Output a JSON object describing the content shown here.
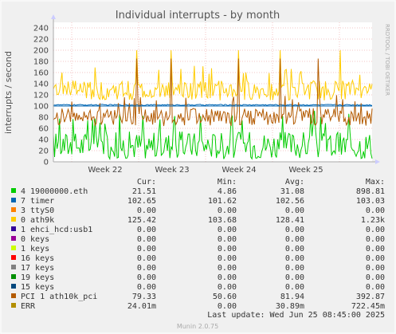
{
  "chart_data": {
    "type": "line",
    "title": "Individual interrupts - by month",
    "ylabel": "interrupts / second",
    "ylim": [
      0,
      250
    ],
    "yticks": [
      0,
      20,
      40,
      60,
      80,
      100,
      120,
      140,
      160,
      180,
      200,
      220,
      240
    ],
    "xticks": [
      "Week 22",
      "Week 23",
      "Week 24",
      "Week 25"
    ],
    "side_label": "RRDTOOL / TOBI OETIKER",
    "threshold_line": 100,
    "series": [
      {
        "name": "4 19000000.eth",
        "color": "#00cc00",
        "base": 30,
        "amp": 25,
        "spike": 82,
        "spikes": [
          0.38,
          0.46,
          0.72
        ]
      },
      {
        "name": "7 timer",
        "color": "#0066b3",
        "base": 102,
        "amp": 1,
        "spike": 103,
        "spikes": []
      },
      {
        "name": "3 ttyS0",
        "color": "#ff8000",
        "base": 0,
        "amp": 0,
        "spike": 0,
        "spikes": []
      },
      {
        "name": "0 ath9k",
        "color": "#ffcc00",
        "base": 128,
        "amp": 18,
        "spike": 200,
        "spikes": [
          0.26,
          0.37,
          0.58,
          0.71,
          0.9
        ]
      },
      {
        "name": "1 ehci_hcd:usb1",
        "color": "#330099",
        "base": 0,
        "amp": 0,
        "spike": 0,
        "spikes": []
      },
      {
        "name": "0 keys",
        "color": "#990099",
        "base": 0,
        "amp": 0,
        "spike": 0,
        "spikes": []
      },
      {
        "name": "1 keys",
        "color": "#ccff00",
        "base": 0,
        "amp": 0,
        "spike": 0,
        "spikes": []
      },
      {
        "name": "16 keys",
        "color": "#ff0000",
        "base": 0,
        "amp": 0,
        "spike": 0,
        "spikes": []
      },
      {
        "name": "17 keys",
        "color": "#808080",
        "base": 0,
        "amp": 0,
        "spike": 0,
        "spikes": []
      },
      {
        "name": "19 keys",
        "color": "#008f00",
        "base": 0,
        "amp": 0,
        "spike": 0,
        "spikes": []
      },
      {
        "name": "15 keys",
        "color": "#00487d",
        "base": 0,
        "amp": 0,
        "spike": 0,
        "spikes": []
      },
      {
        "name": "PCI 1 ath10k_pci",
        "color": "#b35a00",
        "base": 80,
        "amp": 16,
        "spike": 185,
        "spikes": [
          0.26,
          0.37,
          0.58,
          0.71,
          0.83
        ]
      },
      {
        "name": "ERR",
        "color": "#b38f00",
        "base": 0,
        "amp": 0,
        "spike": 0,
        "spikes": []
      }
    ]
  },
  "legend": {
    "headers": {
      "cur": "Cur:",
      "min": "Min:",
      "avg": "Avg:",
      "max": "Max:"
    },
    "rows": [
      {
        "name": "4 19000000.eth",
        "color": "#00cc00",
        "cur": "21.51",
        "min": "4.86",
        "avg": "31.08",
        "max": "898.81"
      },
      {
        "name": "7 timer",
        "color": "#0066b3",
        "cur": "102.65",
        "min": "101.62",
        "avg": "102.56",
        "max": "103.03"
      },
      {
        "name": "3 ttyS0",
        "color": "#ff8000",
        "cur": "0.00",
        "min": "0.00",
        "avg": "0.00",
        "max": "0.00"
      },
      {
        "name": "0 ath9k",
        "color": "#ffcc00",
        "cur": "125.42",
        "min": "103.68",
        "avg": "128.41",
        "max": "1.23k"
      },
      {
        "name": "1 ehci_hcd:usb1",
        "color": "#330099",
        "cur": "0.00",
        "min": "0.00",
        "avg": "0.00",
        "max": "0.00"
      },
      {
        "name": "0 keys",
        "color": "#990099",
        "cur": "0.00",
        "min": "0.00",
        "avg": "0.00",
        "max": "0.00"
      },
      {
        "name": "1 keys",
        "color": "#ccff00",
        "cur": "0.00",
        "min": "0.00",
        "avg": "0.00",
        "max": "0.00"
      },
      {
        "name": "16 keys",
        "color": "#ff0000",
        "cur": "0.00",
        "min": "0.00",
        "avg": "0.00",
        "max": "0.00"
      },
      {
        "name": "17 keys",
        "color": "#808080",
        "cur": "0.00",
        "min": "0.00",
        "avg": "0.00",
        "max": "0.00"
      },
      {
        "name": "19 keys",
        "color": "#008f00",
        "cur": "0.00",
        "min": "0.00",
        "avg": "0.00",
        "max": "0.00"
      },
      {
        "name": "15 keys",
        "color": "#00487d",
        "cur": "0.00",
        "min": "0.00",
        "avg": "0.00",
        "max": "0.00"
      },
      {
        "name": "PCI 1 ath10k_pci",
        "color": "#b35a00",
        "cur": "79.33",
        "min": "50.60",
        "avg": "81.94",
        "max": "392.87"
      },
      {
        "name": "ERR",
        "color": "#b38f00",
        "cur": "24.01m",
        "min": "0.00",
        "avg": "30.89m",
        "max": "722.45m"
      }
    ]
  },
  "last_update": "Last update: Wed Jun 25 08:45:00 2025",
  "footer": "Munin 2.0.75"
}
